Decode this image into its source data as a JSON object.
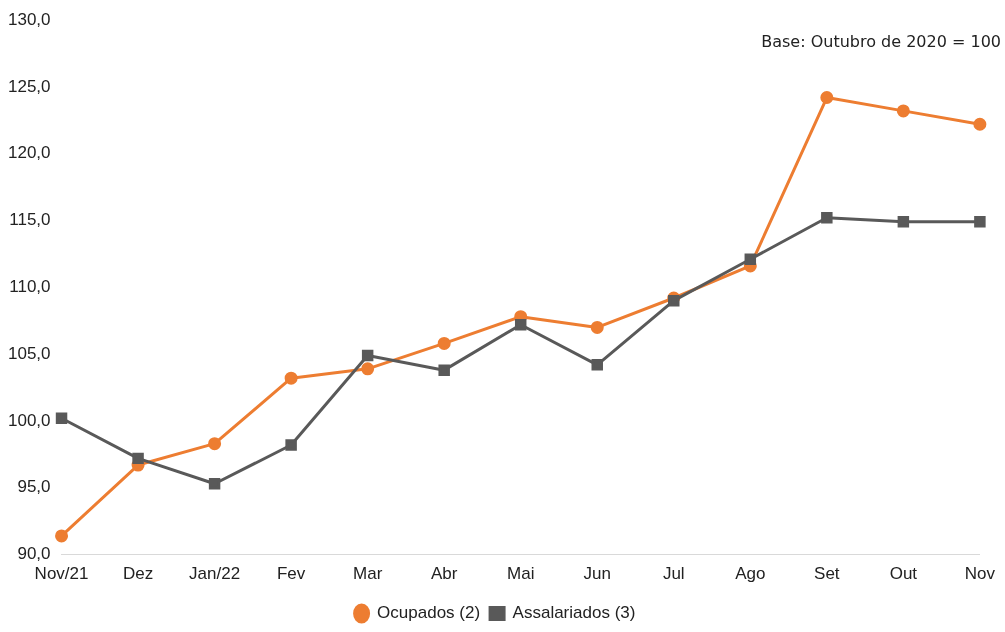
{
  "chart_data": {
    "type": "line",
    "categories": [
      "Nov/21",
      "Dez",
      "Jan/22",
      "Fev",
      "Mar",
      "Abr",
      "Mai",
      "Jun",
      "Jul",
      "Ago",
      "Set",
      "Out",
      "Nov"
    ],
    "series": [
      {
        "name": "Ocupados (2)",
        "color": "#ed7d31",
        "marker": "circle",
        "values": [
          91.4,
          96.7,
          98.3,
          103.2,
          103.9,
          105.8,
          107.8,
          107.0,
          109.2,
          111.6,
          124.2,
          123.2,
          122.2
        ]
      },
      {
        "name": "Assalariados (3)",
        "color": "#595959",
        "marker": "square",
        "values": [
          100.2,
          97.2,
          95.3,
          98.2,
          104.9,
          103.8,
          107.2,
          104.2,
          109.0,
          112.1,
          115.2,
          114.9,
          114.9
        ]
      }
    ],
    "ylim": [
      90,
      130
    ],
    "yticks": [
      {
        "value": 90,
        "label": "90,0"
      },
      {
        "value": 95,
        "label": "95,0"
      },
      {
        "value": 100,
        "label": "100,0"
      },
      {
        "value": 105,
        "label": "105,0"
      },
      {
        "value": 110,
        "label": "110,0"
      },
      {
        "value": 115,
        "label": "115,0"
      },
      {
        "value": 120,
        "label": "120,0"
      },
      {
        "value": 125,
        "label": "125,0"
      },
      {
        "value": 130,
        "label": "130,0"
      }
    ],
    "grid": false,
    "legend": "bottom",
    "annotations": [
      "Base: Outubro de 2020 = 100"
    ]
  }
}
